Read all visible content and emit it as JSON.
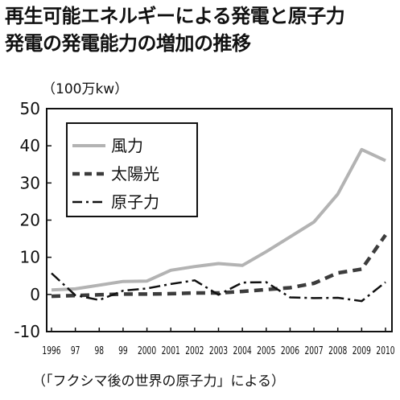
{
  "title_line1": "再生可能エネルギーによる発電と原子力",
  "title_line2": "発電の発電能力の増加の推移",
  "unit_label": "（100万kw）",
  "source_note": "（「フクシマ後の世界の原子力」による）",
  "chart_data": {
    "type": "line",
    "title": "再生可能エネルギーによる発電と原子力発電の発電能力の増加の推移",
    "xlabel": "",
    "ylabel": "（100万kw）",
    "ylim": [
      -10,
      50
    ],
    "yticks": [
      -10,
      0,
      10,
      20,
      30,
      40,
      50
    ],
    "categories": [
      "1996",
      "97",
      "98",
      "99",
      "2000",
      "2001",
      "2002",
      "2003",
      "2004",
      "2005",
      "2006",
      "2007",
      "2008",
      "2009",
      "2010"
    ],
    "grid": false,
    "legend_position": "top-left",
    "series": [
      {
        "name": "風力",
        "style": "solid",
        "color": "#b3b3b3",
        "values": [
          1.2,
          1.5,
          2.5,
          3.5,
          3.6,
          6.5,
          7.5,
          8.3,
          7.8,
          11.5,
          15.5,
          19.5,
          27,
          39,
          36
        ]
      },
      {
        "name": "太陽光",
        "style": "dashed",
        "color": "#3c3c3c",
        "values": [
          -0.5,
          -0.3,
          -0.1,
          0.1,
          0.1,
          0.2,
          0.4,
          0.4,
          0.8,
          1.3,
          1.8,
          3.0,
          5.8,
          6.8,
          16
        ]
      },
      {
        "name": "原子力",
        "style": "dashdot",
        "color": "#111111",
        "values": [
          5.7,
          -0.2,
          -1.5,
          1.0,
          1.6,
          2.8,
          3.8,
          -0.1,
          3.2,
          3.3,
          -0.8,
          -1.0,
          -0.9,
          -1.8,
          3.3
        ]
      }
    ]
  }
}
